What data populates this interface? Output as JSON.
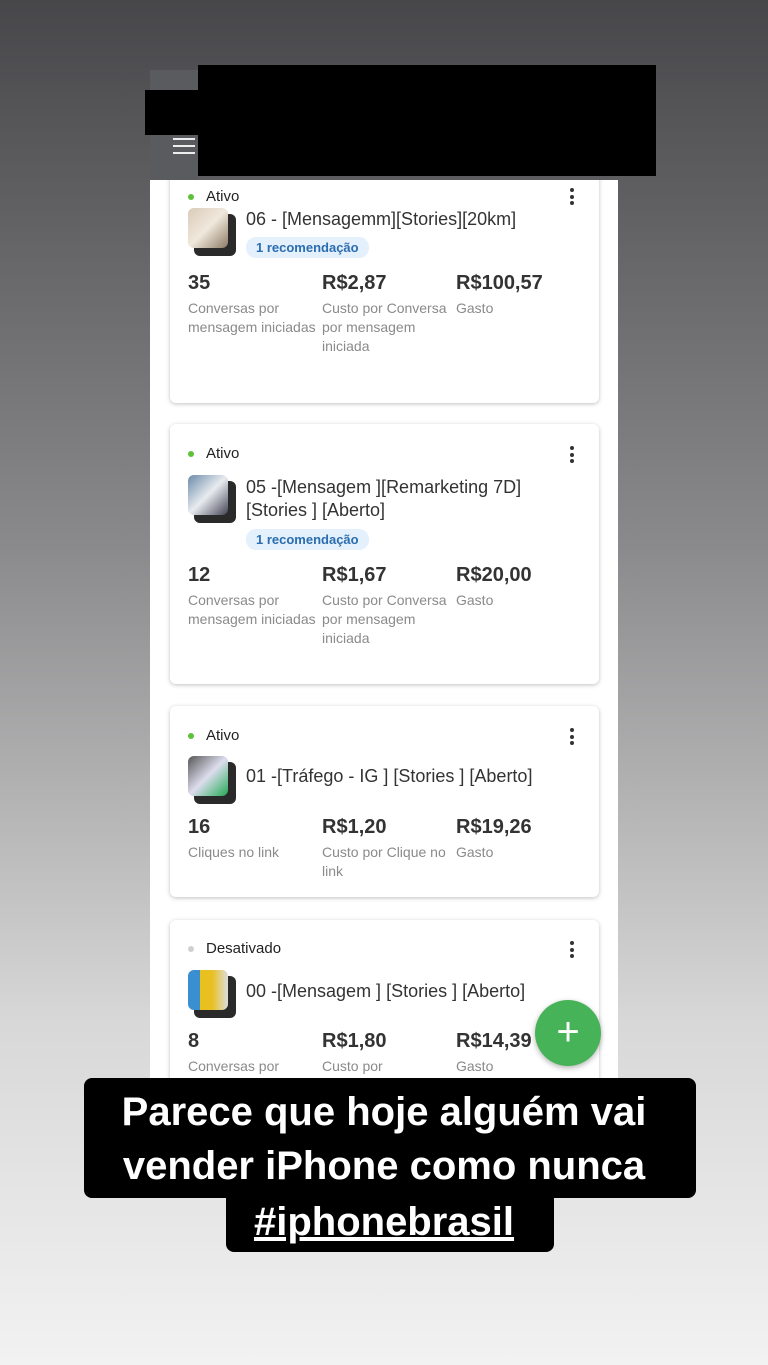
{
  "caption": {
    "line1": "Parece que hoje alguém vai",
    "line2": "vender iPhone como nunca",
    "hashtag": "#iphonebrasil"
  },
  "colors": {
    "active": "#5ec13a",
    "inactive": "#d0d0d0",
    "fab": "#47b358",
    "recommendation_bg": "#e4f0fb"
  },
  "campaigns": [
    {
      "status": "Ativo",
      "title": "06 - [Mensagemm][Stories][20km]",
      "recommendation": "1 recomendação",
      "metrics": [
        {
          "value": "35",
          "label": "Conversas por mensagem iniciadas"
        },
        {
          "value": "R$2,87",
          "label": "Custo por Conversa por mensagem iniciada"
        },
        {
          "value": "R$100,57",
          "label": "Gasto"
        }
      ]
    },
    {
      "status": "Ativo",
      "title": "05 -[Mensagem ][Remarketing 7D] [Stories ] [Aberto]",
      "recommendation": "1 recomendação",
      "metrics": [
        {
          "value": "12",
          "label": "Conversas por mensagem iniciadas"
        },
        {
          "value": "R$1,67",
          "label": "Custo por Conversa por mensagem iniciada"
        },
        {
          "value": "R$20,00",
          "label": "Gasto"
        }
      ]
    },
    {
      "status": "Ativo",
      "title": "01 -[Tráfego - IG ] [Stories ] [Aberto]",
      "metrics": [
        {
          "value": "16",
          "label": "Cliques no link"
        },
        {
          "value": "R$1,20",
          "label": "Custo por Clique no link"
        },
        {
          "value": "R$19,26",
          "label": "Gasto"
        }
      ]
    },
    {
      "status": "Desativado",
      "title": "00 -[Mensagem ] [Stories ] [Aberto]",
      "metrics": [
        {
          "value": "8",
          "label": "Conversas por"
        },
        {
          "value": "R$1,80",
          "label": "Custo por"
        },
        {
          "value": "R$14,39",
          "label": "Gasto"
        }
      ]
    }
  ],
  "fab": {
    "icon": "plus-icon",
    "label": "+"
  }
}
